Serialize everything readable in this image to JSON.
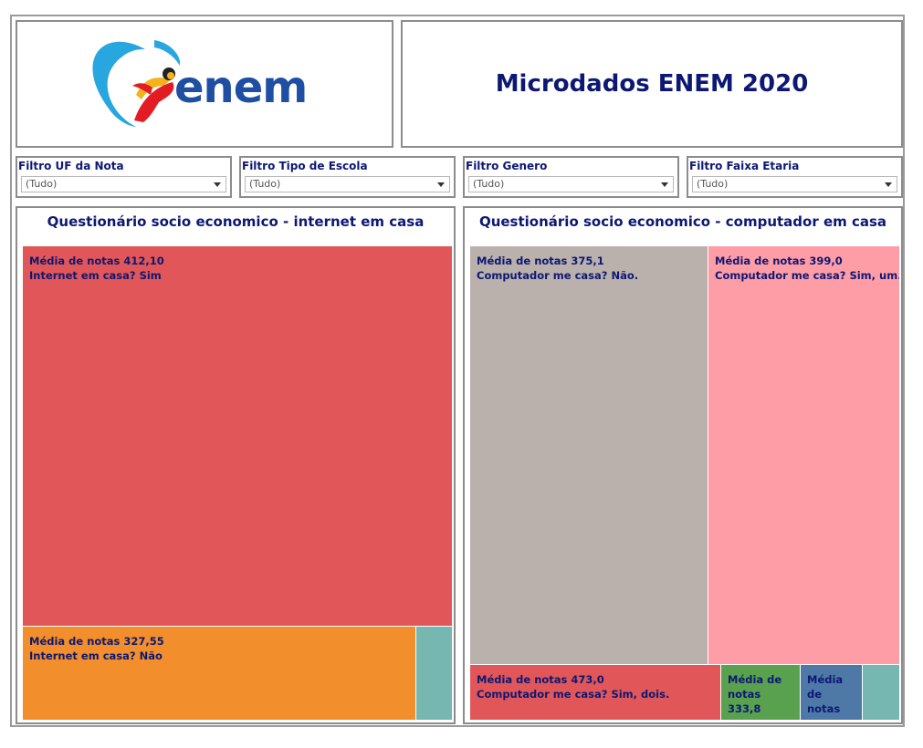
{
  "logo": {
    "text": "enem",
    "colors": {
      "swoosh": "#28a6e0",
      "figure_red": "#e31b23",
      "figure_yellow": "#f6b21b",
      "text": "#1f4fa3"
    }
  },
  "header": {
    "title": "Microdados ENEM 2020"
  },
  "filters": [
    {
      "label": "Filtro UF da Nota",
      "value": "(Tudo)"
    },
    {
      "label": "Filtro Tipo de Escola",
      "value": "(Tudo)"
    },
    {
      "label": "Filtro Genero",
      "value": "(Tudo)"
    },
    {
      "label": "Filtro Faixa Etaria",
      "value": "(Tudo)"
    }
  ],
  "charts": {
    "internet": {
      "title": "Questionário socio economico - internet em casa"
    },
    "computador": {
      "title": "Questionário socio economico - computador em casa"
    }
  },
  "chart_data": [
    {
      "type": "treemap",
      "title": "Questionário socio economico - internet em casa",
      "items": [
        {
          "line1": "Média de notas 412,10",
          "line2": "Internet em casa? Sim",
          "color": "#e15759"
        },
        {
          "line1": "Média de notas 327,55",
          "line2": "Internet em casa? Não",
          "color": "#f28e2b"
        },
        {
          "line1": "",
          "line2": "",
          "color": "#76b7b2"
        }
      ]
    },
    {
      "type": "treemap",
      "title": "Questionário socio economico - computador em casa",
      "items": [
        {
          "line1": "Média de notas 375,1",
          "line2": "Computador me casa? Não.",
          "color": "#bab0ac"
        },
        {
          "line1": "Média de notas 399,0",
          "line2": "Computador me casa? Sim, um.",
          "color": "#ff9da7"
        },
        {
          "line1": "Média de notas 473,0",
          "line2": "Computador me casa? Sim, dois.",
          "color": "#e15759"
        },
        {
          "line1": "Média de",
          "line2": "notas 333,8",
          "color": "#59a14f"
        },
        {
          "line1": "Média de",
          "line2": "notas",
          "color": "#4e79a7"
        },
        {
          "line1": "",
          "line2": "",
          "color": "#76b7b2"
        }
      ]
    }
  ]
}
